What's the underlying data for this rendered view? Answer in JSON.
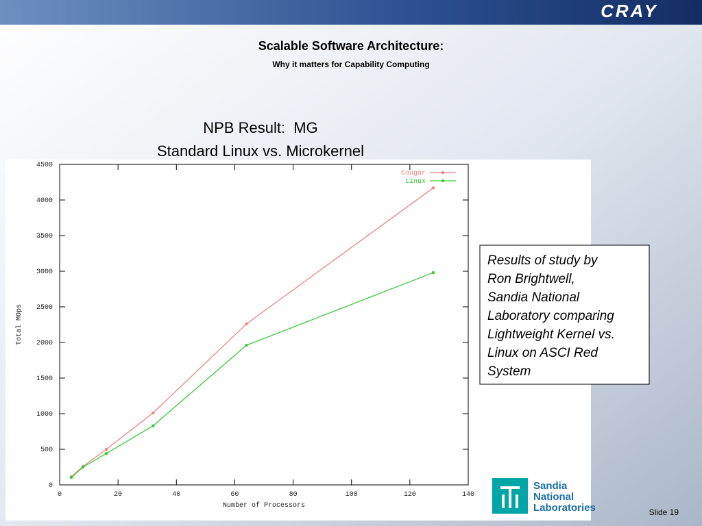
{
  "slide": {
    "logo": "CRAY",
    "title": "Scalable Software Architecture:",
    "subtitle": "Why it matters for Capability Computing",
    "note_lines": [
      "Results of study by",
      "Ron Brightwell,",
      "Sandia National",
      "Laboratory comparing",
      "Lightweight Kernel vs.",
      "Linux on ASCI Red",
      "System"
    ],
    "partner_logo": [
      "Sandia",
      "National",
      "Laboratories"
    ],
    "slide_number": "Slide 19"
  },
  "chart_data": {
    "type": "line",
    "title": "NPB Result:  MG",
    "subtitle": "Standard Linux vs. Microkernel",
    "x_label": "Number of Processors",
    "y_label": "Total MOps",
    "x": [
      4,
      8,
      16,
      32,
      64,
      128
    ],
    "series": [
      {
        "name": "Cougar",
        "color": "#f08080",
        "values": [
          115,
          260,
          500,
          1010,
          2260,
          4170
        ]
      },
      {
        "name": "Linux",
        "color": "#33cc33",
        "values": [
          105,
          250,
          440,
          830,
          1960,
          2980
        ]
      }
    ],
    "xlim": [
      0,
      140
    ],
    "xticks": [
      0,
      20,
      40,
      60,
      80,
      100,
      120,
      140
    ],
    "ylim": [
      0,
      4500
    ],
    "yticks": [
      0,
      500,
      1000,
      1500,
      2000,
      2500,
      3000,
      3500,
      4000,
      4500
    ],
    "legend": "top-right"
  }
}
